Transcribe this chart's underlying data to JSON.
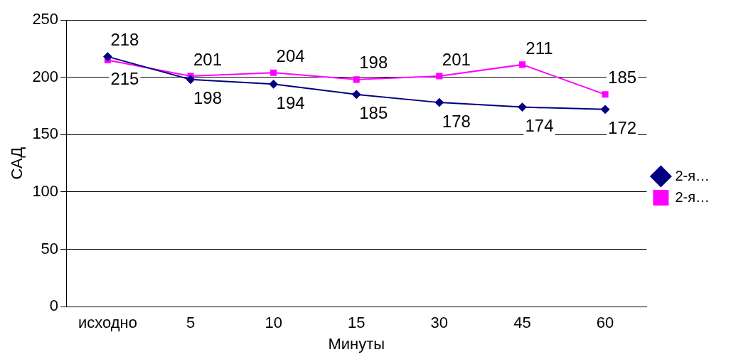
{
  "chart_data": {
    "type": "line",
    "xlabel": "Минуты",
    "ylabel": "САД",
    "categories": [
      "исходно",
      "5",
      "10",
      "15",
      "30",
      "45",
      "60"
    ],
    "series": [
      {
        "name": "2-я…",
        "color": "#000080",
        "marker": "diamond",
        "values": [
          218,
          198,
          194,
          185,
          178,
          174,
          172
        ]
      },
      {
        "name": "2-я…",
        "color": "#ff00ff",
        "marker": "square",
        "values": [
          215,
          201,
          204,
          198,
          201,
          211,
          185
        ]
      }
    ],
    "ylim": [
      0,
      250
    ],
    "yticks": [
      0,
      50,
      100,
      150,
      200,
      250
    ],
    "grid": "y",
    "legend": "right",
    "data_labels": true
  }
}
